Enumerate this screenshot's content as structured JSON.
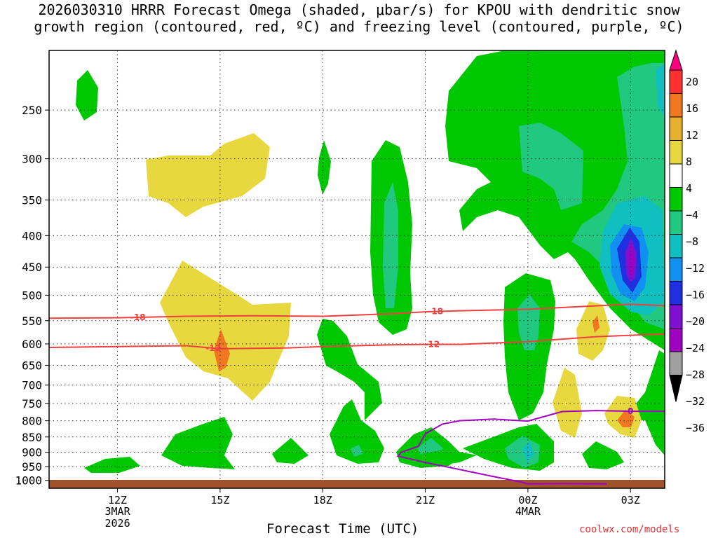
{
  "title_line1": "2026030310 HRRR Forecast Omega (shaded, μbar/s) for KPOU with dendritic snow",
  "title_line2": "growth region (contoured, red, ºC) and freezing level (contoured, purple, ºC)",
  "xlabel": "Forecast Time (UTC)",
  "credit": "coolwx.com/models",
  "chart_data": {
    "type": "heatmap",
    "y_axis": {
      "label": "",
      "scale": "log-pressure",
      "range": [
        1000,
        200
      ],
      "ticks": [
        250,
        300,
        350,
        400,
        450,
        500,
        550,
        600,
        650,
        700,
        750,
        800,
        850,
        900,
        950,
        1000
      ]
    },
    "x_axis": {
      "label": "Forecast Time (UTC)",
      "range_hours": [
        10.0,
        28.0
      ],
      "ticks": [
        {
          "hour": 12,
          "label": "12Z",
          "sub1": "3MAR",
          "sub2": "2026"
        },
        {
          "hour": 15,
          "label": "15Z",
          "sub1": "",
          "sub2": ""
        },
        {
          "hour": 18,
          "label": "18Z",
          "sub1": "",
          "sub2": ""
        },
        {
          "hour": 21,
          "label": "21Z",
          "sub1": "",
          "sub2": ""
        },
        {
          "hour": 24,
          "label": "00Z",
          "sub1": "4MAR",
          "sub2": ""
        },
        {
          "hour": 27,
          "label": "03Z",
          "sub1": "",
          "sub2": ""
        }
      ]
    },
    "colorbar": {
      "labels": [
        "20",
        "16",
        "12",
        "8",
        "4",
        "−4",
        "−8",
        "−12",
        "−16",
        "−20",
        "−24",
        "−28",
        "−32",
        "−36"
      ],
      "colors": [
        "#ff0080",
        "#ff3030",
        "#f07820",
        "#e8b030",
        "#e8d840",
        "#ffffff",
        "#00c800",
        "#20c880",
        "#10c0c0",
        "#1090f0",
        "#2030e0",
        "#8010d0",
        "#a000c0",
        "#a0a0a0",
        "#000000"
      ]
    },
    "contours": [
      {
        "name": "dgz_-18",
        "label": "-18",
        "color": "#f04040",
        "points": [
          [
            10.0,
            545
          ],
          [
            12.0,
            544
          ],
          [
            14.0,
            541
          ],
          [
            16.0,
            540
          ],
          [
            18.0,
            541
          ],
          [
            20.0,
            536
          ],
          [
            21.0,
            532
          ],
          [
            22.0,
            530
          ],
          [
            24.0,
            527
          ],
          [
            25.5,
            522
          ],
          [
            27.0,
            517
          ],
          [
            28.0,
            520
          ]
        ]
      },
      {
        "name": "dgz_-12",
        "label": "-12",
        "color": "#f04040",
        "points": [
          [
            10.0,
            608
          ],
          [
            12.0,
            606
          ],
          [
            14.0,
            604
          ],
          [
            15.0,
            611
          ],
          [
            17.0,
            609
          ],
          [
            18.0,
            606
          ],
          [
            20.0,
            602
          ],
          [
            21.0,
            601
          ],
          [
            22.0,
            601
          ],
          [
            24.0,
            595
          ],
          [
            26.0,
            584
          ],
          [
            28.0,
            578
          ]
        ]
      },
      {
        "name": "freezing_0",
        "label": "0",
        "color": "#a000c0",
        "points": [
          [
            26.3,
            1013
          ],
          [
            25.0,
            1012
          ],
          [
            24.0,
            1013
          ],
          [
            23.8,
            1006
          ],
          [
            23.0,
            986
          ],
          [
            22.0,
            960
          ],
          [
            21.0,
            935
          ],
          [
            20.2,
            913
          ],
          [
            20.3,
            900
          ],
          [
            20.8,
            880
          ],
          [
            21.0,
            840
          ],
          [
            21.5,
            810
          ],
          [
            22.0,
            800
          ],
          [
            23.0,
            795
          ],
          [
            24.0,
            801
          ],
          [
            25.0,
            773
          ],
          [
            26.0,
            770
          ],
          [
            27.0,
            772
          ],
          [
            28.0,
            772
          ]
        ]
      }
    ],
    "shaded_regions": [
      {
        "value_class": "-8",
        "color": "#00c800",
        "points": [
          [
            20.4,
            930
          ],
          [
            21.1,
            950
          ],
          [
            22.0,
            935
          ],
          [
            22.5,
            910
          ],
          [
            21.6,
            890
          ],
          [
            20.9,
            905
          ]
        ]
      }
    ]
  }
}
